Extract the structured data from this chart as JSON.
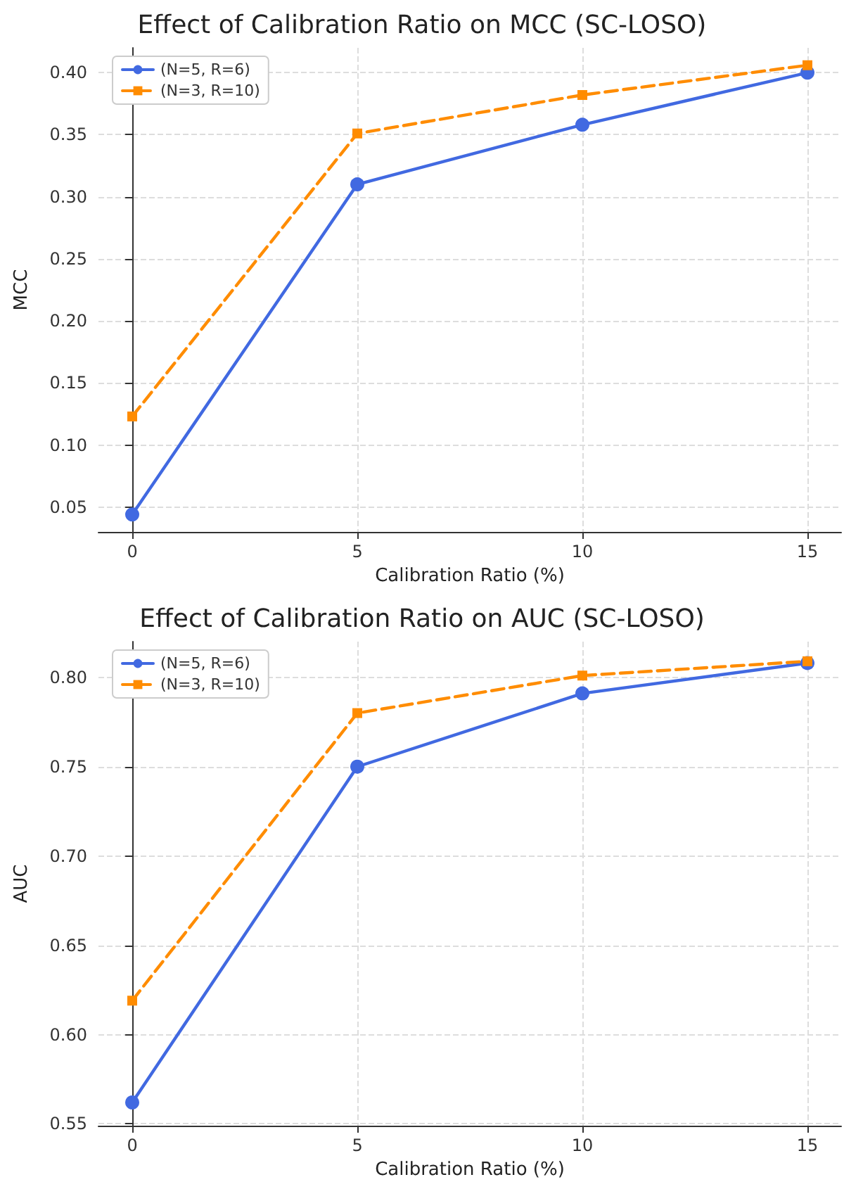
{
  "chart_data": [
    {
      "type": "line",
      "title": "Effect of Calibration Ratio on MCC (SC-LOSO)",
      "xlabel": "Calibration Ratio (%)",
      "ylabel": "MCC",
      "x": [
        0,
        5,
        10,
        15
      ],
      "xlim": [
        -0.75,
        15.75
      ],
      "xticks": [
        0,
        5,
        10,
        15
      ],
      "ylim": [
        0.03,
        0.42
      ],
      "yticks": [
        0.05,
        {
          "value": 0.1,
          "label": "0.10"
        },
        0.15,
        {
          "value": 0.2,
          "label": "0.20"
        },
        0.25,
        {
          "value": 0.3,
          "label": "0.30"
        },
        0.35,
        {
          "value": 0.4,
          "label": "0.40"
        }
      ],
      "grid": true,
      "legend": "top left",
      "series": [
        {
          "name": "(N=5, R=6)",
          "color": "#4169e1",
          "values": [
            0.044,
            0.31,
            0.358,
            0.4
          ],
          "marker": "circle",
          "line_style": "solid"
        },
        {
          "name": "(N=3, R=10)",
          "color": "#ff8c00",
          "values": [
            0.123,
            0.351,
            0.382,
            0.406
          ],
          "marker": "square",
          "line_style": "dashed"
        }
      ]
    },
    {
      "type": "line",
      "title": "Effect of Calibration Ratio on AUC (SC-LOSO)",
      "xlabel": "Calibration Ratio (%)",
      "ylabel": "AUC",
      "x": [
        0,
        5,
        10,
        15
      ],
      "xlim": [
        -0.75,
        15.75
      ],
      "xticks": [
        0,
        5,
        10,
        15
      ],
      "ylim": [
        0.549,
        0.82
      ],
      "yticks": [
        0.55,
        {
          "value": 0.6,
          "label": "0.60"
        },
        0.65,
        {
          "value": 0.7,
          "label": "0.70"
        },
        0.75,
        {
          "value": 0.8,
          "label": "0.80"
        }
      ],
      "grid": true,
      "legend": "top left",
      "series": [
        {
          "name": "(N=5, R=6)",
          "color": "#4169e1",
          "values": [
            0.562,
            0.75,
            0.791,
            0.808
          ],
          "marker": "circle",
          "line_style": "solid"
        },
        {
          "name": "(N=3, R=10)",
          "color": "#ff8c00",
          "values": [
            0.619,
            0.78,
            0.801,
            0.809
          ],
          "marker": "square",
          "line_style": "dashed"
        }
      ]
    }
  ]
}
